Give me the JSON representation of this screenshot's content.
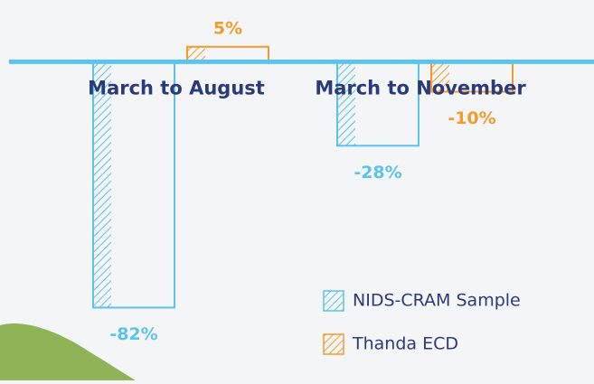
{
  "chart_data": {
    "type": "bar",
    "categories": [
      "March to August",
      "March to November"
    ],
    "series": [
      {
        "name": "NIDS-CRAM Sample",
        "color": "#5bc3ec",
        "values": [
          -82,
          -28
        ],
        "value_labels": [
          "-82%",
          "-28%"
        ]
      },
      {
        "name": "Thanda ECD",
        "color": "#f39c2c",
        "values": [
          5,
          -10
        ],
        "value_labels": [
          "5%",
          "-10%"
        ]
      }
    ],
    "ylim": [
      -90,
      20
    ],
    "legend": "bottom-right"
  }
}
